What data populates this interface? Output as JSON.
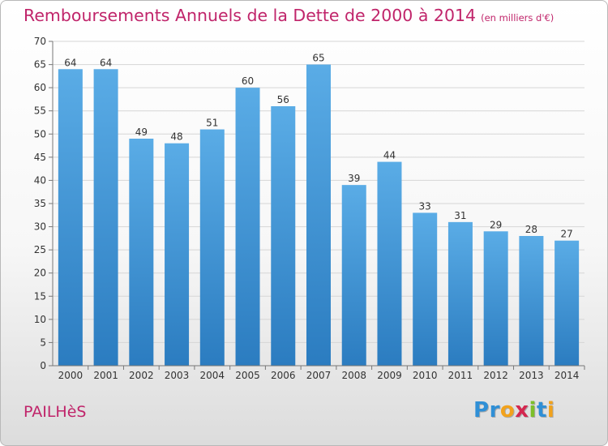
{
  "header": {
    "title": "Remboursements Annuels de la Dette de 2000 à 2014",
    "subtitle": "(en milliers d'€)"
  },
  "footer": {
    "commune": "PAILHèS",
    "logo_letters": [
      {
        "ch": "P",
        "color": "#2f8fd6"
      },
      {
        "ch": "r",
        "color": "#2f8fd6"
      },
      {
        "ch": "o",
        "color": "#f2a21c"
      },
      {
        "ch": "x",
        "color": "#d4274f"
      },
      {
        "ch": "i",
        "color": "#7cbf2a"
      },
      {
        "ch": "t",
        "color": "#2f8fd6"
      },
      {
        "ch": "i",
        "color": "#f2a21c"
      }
    ]
  },
  "chart_data": {
    "type": "bar",
    "title": "Remboursements Annuels de la Dette de 2000 à 2014",
    "subtitle": "(en milliers d'€)",
    "categories": [
      "2000",
      "2001",
      "2002",
      "2003",
      "2004",
      "2005",
      "2006",
      "2007",
      "2008",
      "2009",
      "2010",
      "2011",
      "2012",
      "2013",
      "2014"
    ],
    "values": [
      64,
      64,
      49,
      48,
      51,
      60,
      56,
      65,
      39,
      44,
      33,
      31,
      29,
      28,
      27
    ],
    "ylim": [
      0,
      70
    ],
    "yticks": [
      0,
      5,
      10,
      15,
      20,
      25,
      30,
      35,
      40,
      45,
      50,
      55,
      60,
      65,
      70
    ],
    "grid": true,
    "data_labels": true,
    "bar_color_top": "#5aace6",
    "bar_color_bottom": "#2b7cc0"
  }
}
